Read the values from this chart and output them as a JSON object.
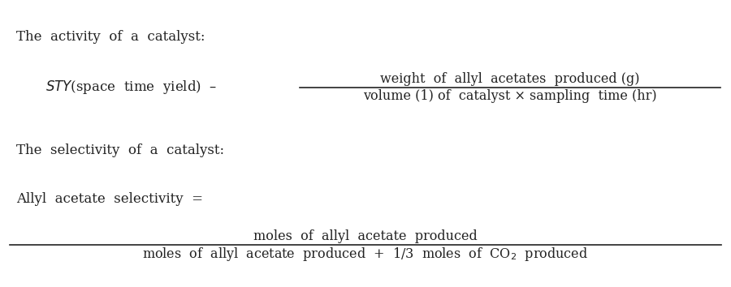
{
  "background_color": "#ffffff",
  "text_color": "#222222",
  "line1": "The  activity  of  a  catalyst:",
  "line3": "The  selectivity  of  a  catalyst:",
  "sty_left": "$\\mathit{STY}$(space  time  yield)  –",
  "numerator1": "weight  of  allyl  acetates  produced (g)",
  "denominator1": "volume (1) of  catalyst × sampling  time (hr)",
  "selectivity_label": "Allyl  acetate  selectivity  =",
  "numerator2": "moles  of  allyl  acetate  produced",
  "denominator2": "moles  of  allyl  acetate  produced  +  1/3  moles  of  CO$_2$  produced",
  "figwidth": 9.0,
  "figheight": 3.54,
  "dpi": 100,
  "fontsize": 12
}
